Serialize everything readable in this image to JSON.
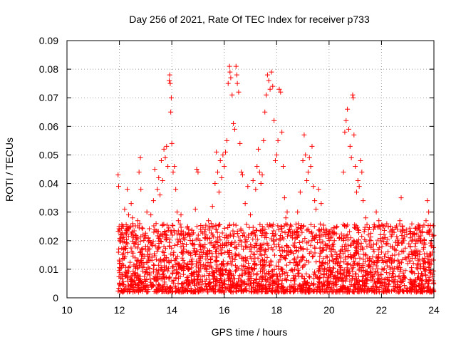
{
  "chart_data": {
    "type": "scatter",
    "title": "Day 256 of 2021, Rate Of TEC Index for receiver p733",
    "xlabel": "GPS time / hours",
    "ylabel": "ROTI / TECUs",
    "xlim": [
      10,
      24
    ],
    "ylim": [
      0,
      0.09
    ],
    "x_ticks": [
      "10",
      "12",
      "14",
      "16",
      "18",
      "20",
      "22",
      "24"
    ],
    "y_ticks": [
      "0",
      "0.01",
      "0.02",
      "0.03",
      "0.04",
      "0.05",
      "0.06",
      "0.07",
      "0.08",
      "0.09"
    ],
    "grid": true,
    "marker": "+",
    "colors": {
      "points": "#ff0000",
      "grid": "#a0a0a0",
      "axes": "#000000"
    },
    "series": [
      {
        "points": [
          [
            11.95,
            0.043
          ],
          [
            11.97,
            0.039
          ],
          [
            12.0,
            0.012
          ],
          [
            12.05,
            0.022
          ],
          [
            12.1,
            0.008
          ],
          [
            12.15,
            0.025
          ],
          [
            12.2,
            0.031
          ],
          [
            12.25,
            0.018
          ],
          [
            12.3,
            0.038
          ],
          [
            12.35,
            0.029
          ],
          [
            12.4,
            0.011
          ],
          [
            12.45,
            0.033
          ],
          [
            12.5,
            0.028
          ],
          [
            12.55,
            0.019
          ],
          [
            12.6,
            0.014
          ],
          [
            12.7,
            0.027
          ],
          [
            12.75,
            0.044
          ],
          [
            12.8,
            0.049
          ],
          [
            12.82,
            0.038
          ],
          [
            12.9,
            0.022
          ],
          [
            13.0,
            0.018
          ],
          [
            13.05,
            0.03
          ],
          [
            13.1,
            0.021
          ],
          [
            13.2,
            0.029
          ],
          [
            13.3,
            0.034
          ],
          [
            13.35,
            0.045
          ],
          [
            13.4,
            0.026
          ],
          [
            13.45,
            0.038
          ],
          [
            13.5,
            0.042
          ],
          [
            13.55,
            0.036
          ],
          [
            13.6,
            0.048
          ],
          [
            13.65,
            0.041
          ],
          [
            13.7,
            0.052
          ],
          [
            13.75,
            0.049
          ],
          [
            13.8,
            0.053
          ],
          [
            13.85,
            0.046
          ],
          [
            13.9,
            0.076
          ],
          [
            13.92,
            0.078
          ],
          [
            13.94,
            0.075
          ],
          [
            13.96,
            0.065
          ],
          [
            13.98,
            0.07
          ],
          [
            14.0,
            0.054
          ],
          [
            14.05,
            0.044
          ],
          [
            14.1,
            0.046
          ],
          [
            14.15,
            0.038
          ],
          [
            14.2,
            0.03
          ],
          [
            14.25,
            0.027
          ],
          [
            14.3,
            0.022
          ],
          [
            14.35,
            0.029
          ],
          [
            14.4,
            0.016
          ],
          [
            14.5,
            0.021
          ],
          [
            14.6,
            0.025
          ],
          [
            14.7,
            0.022
          ],
          [
            14.8,
            0.02
          ],
          [
            14.9,
            0.031
          ],
          [
            14.95,
            0.045
          ],
          [
            15.0,
            0.044
          ],
          [
            15.1,
            0.024
          ],
          [
            15.2,
            0.018
          ],
          [
            15.3,
            0.022
          ],
          [
            15.4,
            0.027
          ],
          [
            15.5,
            0.026
          ],
          [
            15.55,
            0.032
          ],
          [
            15.6,
            0.025
          ],
          [
            15.65,
            0.04
          ],
          [
            15.7,
            0.051
          ],
          [
            15.75,
            0.044
          ],
          [
            15.8,
            0.037
          ],
          [
            15.85,
            0.048
          ],
          [
            15.9,
            0.042
          ],
          [
            15.95,
            0.05
          ],
          [
            16.0,
            0.046
          ],
          [
            16.05,
            0.051
          ],
          [
            16.1,
            0.055
          ],
          [
            16.15,
            0.075
          ],
          [
            16.2,
            0.081
          ],
          [
            16.22,
            0.079
          ],
          [
            16.25,
            0.077
          ],
          [
            16.3,
            0.071
          ],
          [
            16.35,
            0.061
          ],
          [
            16.4,
            0.059
          ],
          [
            16.45,
            0.081
          ],
          [
            16.48,
            0.078
          ],
          [
            16.5,
            0.075
          ],
          [
            16.55,
            0.072
          ],
          [
            16.6,
            0.054
          ],
          [
            16.65,
            0.044
          ],
          [
            16.7,
            0.043
          ],
          [
            16.8,
            0.033
          ],
          [
            16.9,
            0.039
          ],
          [
            17.0,
            0.029
          ],
          [
            17.1,
            0.041
          ],
          [
            17.2,
            0.038
          ],
          [
            17.25,
            0.046
          ],
          [
            17.3,
            0.052
          ],
          [
            17.35,
            0.044
          ],
          [
            17.4,
            0.04
          ],
          [
            17.45,
            0.043
          ],
          [
            17.5,
            0.055
          ],
          [
            17.55,
            0.065
          ],
          [
            17.6,
            0.071
          ],
          [
            17.65,
            0.078
          ],
          [
            17.7,
            0.076
          ],
          [
            17.75,
            0.073
          ],
          [
            17.8,
            0.079
          ],
          [
            17.85,
            0.074
          ],
          [
            17.9,
            0.062
          ],
          [
            17.95,
            0.048
          ],
          [
            18.0,
            0.05
          ],
          [
            18.05,
            0.055
          ],
          [
            18.1,
            0.073
          ],
          [
            18.15,
            0.072
          ],
          [
            18.2,
            0.058
          ],
          [
            18.25,
            0.046
          ],
          [
            18.3,
            0.035
          ],
          [
            18.35,
            0.028
          ],
          [
            18.4,
            0.03
          ],
          [
            18.5,
            0.024
          ],
          [
            18.6,
            0.021
          ],
          [
            18.7,
            0.022
          ],
          [
            18.8,
            0.03
          ],
          [
            18.9,
            0.037
          ],
          [
            19.0,
            0.048
          ],
          [
            19.05,
            0.057
          ],
          [
            19.1,
            0.05
          ],
          [
            19.15,
            0.041
          ],
          [
            19.2,
            0.044
          ],
          [
            19.25,
            0.049
          ],
          [
            19.3,
            0.046
          ],
          [
            19.35,
            0.053
          ],
          [
            19.4,
            0.039
          ],
          [
            19.45,
            0.034
          ],
          [
            19.5,
            0.031
          ],
          [
            19.6,
            0.038
          ],
          [
            19.7,
            0.033
          ],
          [
            19.8,
            0.024
          ],
          [
            19.9,
            0.017
          ],
          [
            20.0,
            0.022
          ],
          [
            20.1,
            0.015
          ],
          [
            20.2,
            0.02
          ],
          [
            20.3,
            0.025
          ],
          [
            20.4,
            0.021
          ],
          [
            20.5,
            0.018
          ],
          [
            20.55,
            0.044
          ],
          [
            20.6,
            0.058
          ],
          [
            20.65,
            0.062
          ],
          [
            20.7,
            0.066
          ],
          [
            20.75,
            0.059
          ],
          [
            20.8,
            0.053
          ],
          [
            20.85,
            0.049
          ],
          [
            20.9,
            0.071
          ],
          [
            20.92,
            0.07
          ],
          [
            20.95,
            0.057
          ],
          [
            21.0,
            0.046
          ],
          [
            21.05,
            0.037
          ],
          [
            21.1,
            0.041
          ],
          [
            21.15,
            0.039
          ],
          [
            21.2,
            0.048
          ],
          [
            21.25,
            0.044
          ],
          [
            21.3,
            0.034
          ],
          [
            21.4,
            0.028
          ],
          [
            21.5,
            0.022
          ],
          [
            21.6,
            0.02
          ],
          [
            21.7,
            0.024
          ],
          [
            21.8,
            0.03
          ],
          [
            21.9,
            0.027
          ],
          [
            22.0,
            0.016
          ],
          [
            22.1,
            0.021
          ],
          [
            22.2,
            0.019
          ],
          [
            22.3,
            0.013
          ],
          [
            22.4,
            0.022
          ],
          [
            22.5,
            0.017
          ],
          [
            22.6,
            0.024
          ],
          [
            22.7,
            0.027
          ],
          [
            22.75,
            0.035
          ],
          [
            22.8,
            0.023
          ],
          [
            22.9,
            0.014
          ],
          [
            23.0,
            0.012
          ],
          [
            23.1,
            0.021
          ],
          [
            23.2,
            0.016
          ],
          [
            23.3,
            0.019
          ],
          [
            23.4,
            0.013
          ],
          [
            23.5,
            0.011
          ],
          [
            23.6,
            0.017
          ],
          [
            23.7,
            0.027
          ],
          [
            23.75,
            0.034
          ],
          [
            23.8,
            0.03
          ],
          [
            23.85,
            0.024
          ],
          [
            23.9,
            0.02
          ],
          [
            23.95,
            0.016
          ],
          [
            14.0,
            0.002
          ],
          [
            12.5,
            0.004
          ],
          [
            13.0,
            0.003
          ],
          [
            15.6,
            0.003
          ],
          [
            17.0,
            0.005
          ],
          [
            19.5,
            0.003
          ],
          [
            21.0,
            0.004
          ],
          [
            22.2,
            0.002
          ],
          [
            23.5,
            0.003
          ],
          [
            16.5,
            0.004
          ],
          [
            18.5,
            0.004
          ],
          [
            20.5,
            0.003
          ]
        ]
      }
    ],
    "dense_band": {
      "x_start": 11.95,
      "x_end": 24.0,
      "y_low": 0.002,
      "y_high": 0.026
    }
  }
}
